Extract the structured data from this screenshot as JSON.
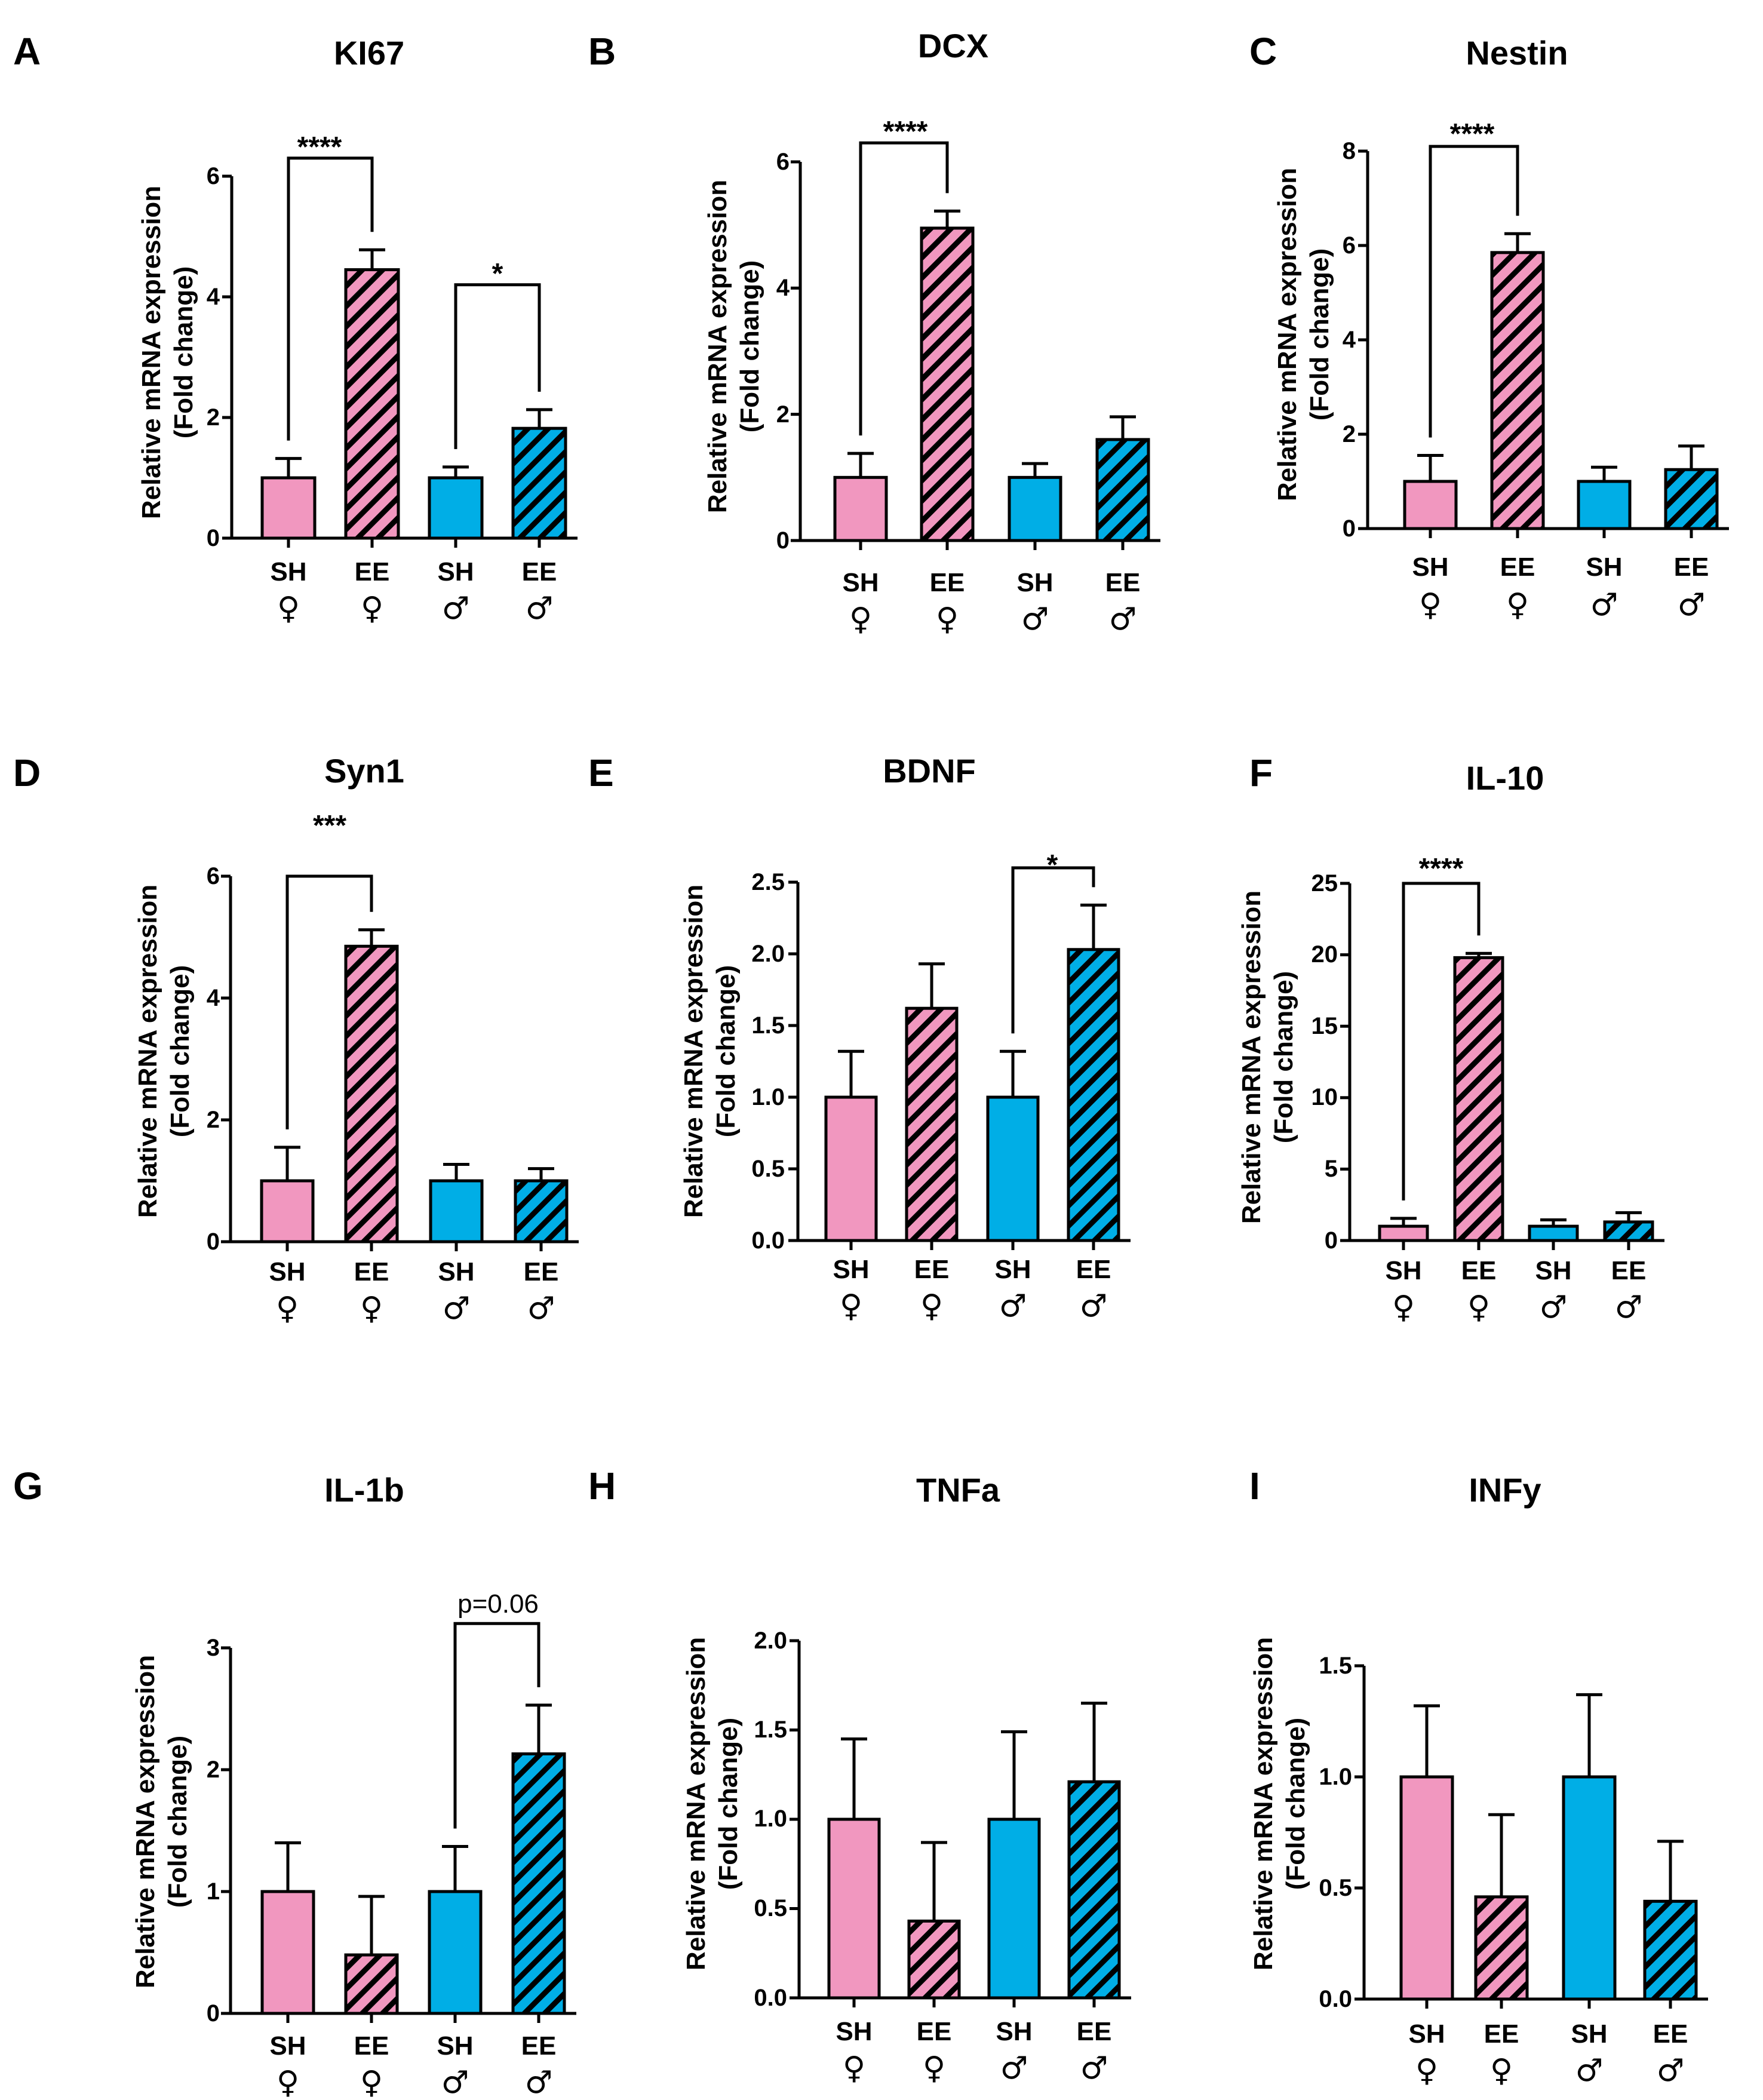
{
  "colors": {
    "female": "#f197bf",
    "male": "#00aee6",
    "stroke": "#000000"
  },
  "chart_data": [
    {
      "letter": "A",
      "type": "bar",
      "title": "KI67",
      "ylabel": [
        "Relative mRNA expression",
        "(Fold change)"
      ],
      "ylim": [
        0,
        6
      ],
      "yticks": [
        "0",
        "2",
        "4",
        "6"
      ],
      "categories": [
        "SH",
        "EE",
        "SH",
        "EE"
      ],
      "sex": [
        "♀",
        "♀",
        "♂",
        "♂"
      ],
      "values": [
        1.0,
        4.45,
        1.0,
        1.82
      ],
      "errors": [
        0.32,
        0.33,
        0.18,
        0.31
      ],
      "hatched": [
        false,
        true,
        false,
        true
      ],
      "group": [
        "female",
        "female",
        "male",
        "male"
      ],
      "comparisons": [
        {
          "from": 0,
          "to": 1,
          "label": "****",
          "level": 6.3
        },
        {
          "from": 2,
          "to": 3,
          "label": "*",
          "level": 4.2
        }
      ]
    },
    {
      "letter": "B",
      "type": "bar",
      "title": "DCX",
      "ylabel": [
        "Relative mRNA expression",
        "(Fold change)"
      ],
      "ylim": [
        0,
        6
      ],
      "yticks": [
        "0",
        "2",
        "4",
        "6"
      ],
      "categories": [
        "SH",
        "EE",
        "SH",
        "EE"
      ],
      "sex": [
        "♀",
        "♀",
        "♂",
        "♂"
      ],
      "values": [
        1.0,
        4.95,
        1.0,
        1.6
      ],
      "errors": [
        0.38,
        0.27,
        0.22,
        0.36
      ],
      "hatched": [
        false,
        true,
        false,
        true
      ],
      "group": [
        "female",
        "female",
        "male",
        "male"
      ],
      "comparisons": [
        {
          "from": 0,
          "to": 1,
          "label": "****",
          "level": 6.3
        }
      ]
    },
    {
      "letter": "C",
      "type": "bar",
      "title": "Nestin",
      "ylabel": [
        "Relative mRNA expression",
        "(Fold change)"
      ],
      "ylim": [
        0,
        8
      ],
      "yticks": [
        "0",
        "2",
        "4",
        "6",
        "8"
      ],
      "categories": [
        "SH",
        "EE",
        "SH",
        "EE"
      ],
      "sex": [
        "♀",
        "♀",
        "♂",
        "♂"
      ],
      "values": [
        1.0,
        5.85,
        1.0,
        1.25
      ],
      "errors": [
        0.55,
        0.4,
        0.3,
        0.5
      ],
      "hatched": [
        false,
        true,
        false,
        true
      ],
      "group": [
        "female",
        "female",
        "male",
        "male"
      ],
      "comparisons": [
        {
          "from": 0,
          "to": 1,
          "label": "****",
          "level": 8.1
        }
      ]
    },
    {
      "letter": "D",
      "type": "bar",
      "title": "Syn1",
      "ylabel": [
        "Relative mRNA expression",
        "(Fold change)"
      ],
      "ylim": [
        0,
        6
      ],
      "yticks": [
        "0",
        "2",
        "4",
        "6"
      ],
      "categories": [
        "SH",
        "EE",
        "SH",
        "EE"
      ],
      "sex": [
        "♀",
        "♀",
        "♂",
        "♂"
      ],
      "values": [
        1.0,
        4.85,
        1.0,
        1.0
      ],
      "errors": [
        0.55,
        0.27,
        0.27,
        0.2
      ],
      "hatched": [
        false,
        true,
        false,
        true
      ],
      "group": [
        "female",
        "female",
        "male",
        "male"
      ],
      "comparisons": [
        {
          "from": 0,
          "to": 1,
          "label": "***",
          "level": 6.0
        }
      ]
    },
    {
      "letter": "E",
      "type": "bar",
      "title": "BDNF",
      "ylabel": [
        "Relative mRNA expression",
        "(Fold change)"
      ],
      "ylim": [
        0,
        2.5
      ],
      "yticks": [
        "0.0",
        "0.5",
        "1.0",
        "1.5",
        "2.0",
        "2.5"
      ],
      "categories": [
        "SH",
        "EE",
        "SH",
        "EE"
      ],
      "sex": [
        "♀",
        "♀",
        "♂",
        "♂"
      ],
      "values": [
        1.0,
        1.62,
        1.0,
        2.03
      ],
      "errors": [
        0.32,
        0.31,
        0.32,
        0.31
      ],
      "hatched": [
        false,
        true,
        false,
        true
      ],
      "group": [
        "female",
        "female",
        "male",
        "male"
      ],
      "comparisons": [
        {
          "from": 2,
          "to": 3,
          "label": "*",
          "level": 2.6
        }
      ]
    },
    {
      "letter": "F",
      "type": "bar",
      "title": "IL-10",
      "ylabel": [
        "Relative mRNA expression",
        "(Fold change)"
      ],
      "ylim": [
        0,
        25
      ],
      "yticks": [
        "0",
        "5",
        "10",
        "15",
        "20",
        "25"
      ],
      "categories": [
        "SH",
        "EE",
        "SH",
        "EE"
      ],
      "sex": [
        "♀",
        "♀",
        "♂",
        "♂"
      ],
      "values": [
        1.0,
        19.8,
        1.0,
        1.3
      ],
      "errors": [
        0.55,
        0.3,
        0.45,
        0.65
      ],
      "hatched": [
        false,
        true,
        false,
        true
      ],
      "group": [
        "female",
        "female",
        "male",
        "male"
      ],
      "comparisons": [
        {
          "from": 0,
          "to": 1,
          "label": "****",
          "level": 25.0
        }
      ]
    },
    {
      "letter": "G",
      "type": "bar",
      "title": "IL-1b",
      "ylabel": [
        "Relative mRNA expression",
        "(Fold change)"
      ],
      "ylim": [
        0,
        3
      ],
      "yticks": [
        "0",
        "1",
        "2",
        "3"
      ],
      "categories": [
        "SH",
        "EE",
        "SH",
        "EE"
      ],
      "sex": [
        "♀",
        "♀",
        "♂",
        "♂"
      ],
      "values": [
        1.0,
        0.48,
        1.0,
        2.13
      ],
      "errors": [
        0.4,
        0.48,
        0.37,
        0.4
      ],
      "hatched": [
        false,
        true,
        false,
        true
      ],
      "group": [
        "female",
        "female",
        "male",
        "male"
      ],
      "comparisons": [
        {
          "from": 2,
          "to": 3,
          "label": "p=0.06",
          "level": 3.2,
          "plain": true
        }
      ]
    },
    {
      "letter": "H",
      "type": "bar",
      "title": "TNFa",
      "ylabel": [
        "Relative mRNA expression",
        "(Fold change)"
      ],
      "ylim": [
        0,
        2.0
      ],
      "yticks": [
        "0.0",
        "0.5",
        "1.0",
        "1.5",
        "2.0"
      ],
      "categories": [
        "SH",
        "EE",
        "SH",
        "EE"
      ],
      "sex": [
        "♀",
        "♀",
        "♂",
        "♂"
      ],
      "values": [
        1.0,
        0.43,
        1.0,
        1.21
      ],
      "errors": [
        0.45,
        0.44,
        0.49,
        0.44
      ],
      "hatched": [
        false,
        true,
        false,
        true
      ],
      "group": [
        "female",
        "female",
        "male",
        "male"
      ],
      "comparisons": []
    },
    {
      "letter": "I",
      "type": "bar",
      "title": "INFy",
      "ylabel": [
        "Relative mRNA expression",
        "(Fold change)"
      ],
      "ylim": [
        0,
        1.5
      ],
      "yticks": [
        "0.0",
        "0.5",
        "1.0",
        "1.5"
      ],
      "categories": [
        "SH",
        "EE",
        "SH",
        "EE"
      ],
      "sex": [
        "♀",
        "♀",
        "♂",
        "♂"
      ],
      "values": [
        1.0,
        0.46,
        1.0,
        0.44
      ],
      "errors": [
        0.32,
        0.37,
        0.37,
        0.27
      ],
      "hatched": [
        false,
        true,
        false,
        true
      ],
      "group": [
        "female",
        "female",
        "male",
        "male"
      ],
      "comparisons": []
    }
  ]
}
